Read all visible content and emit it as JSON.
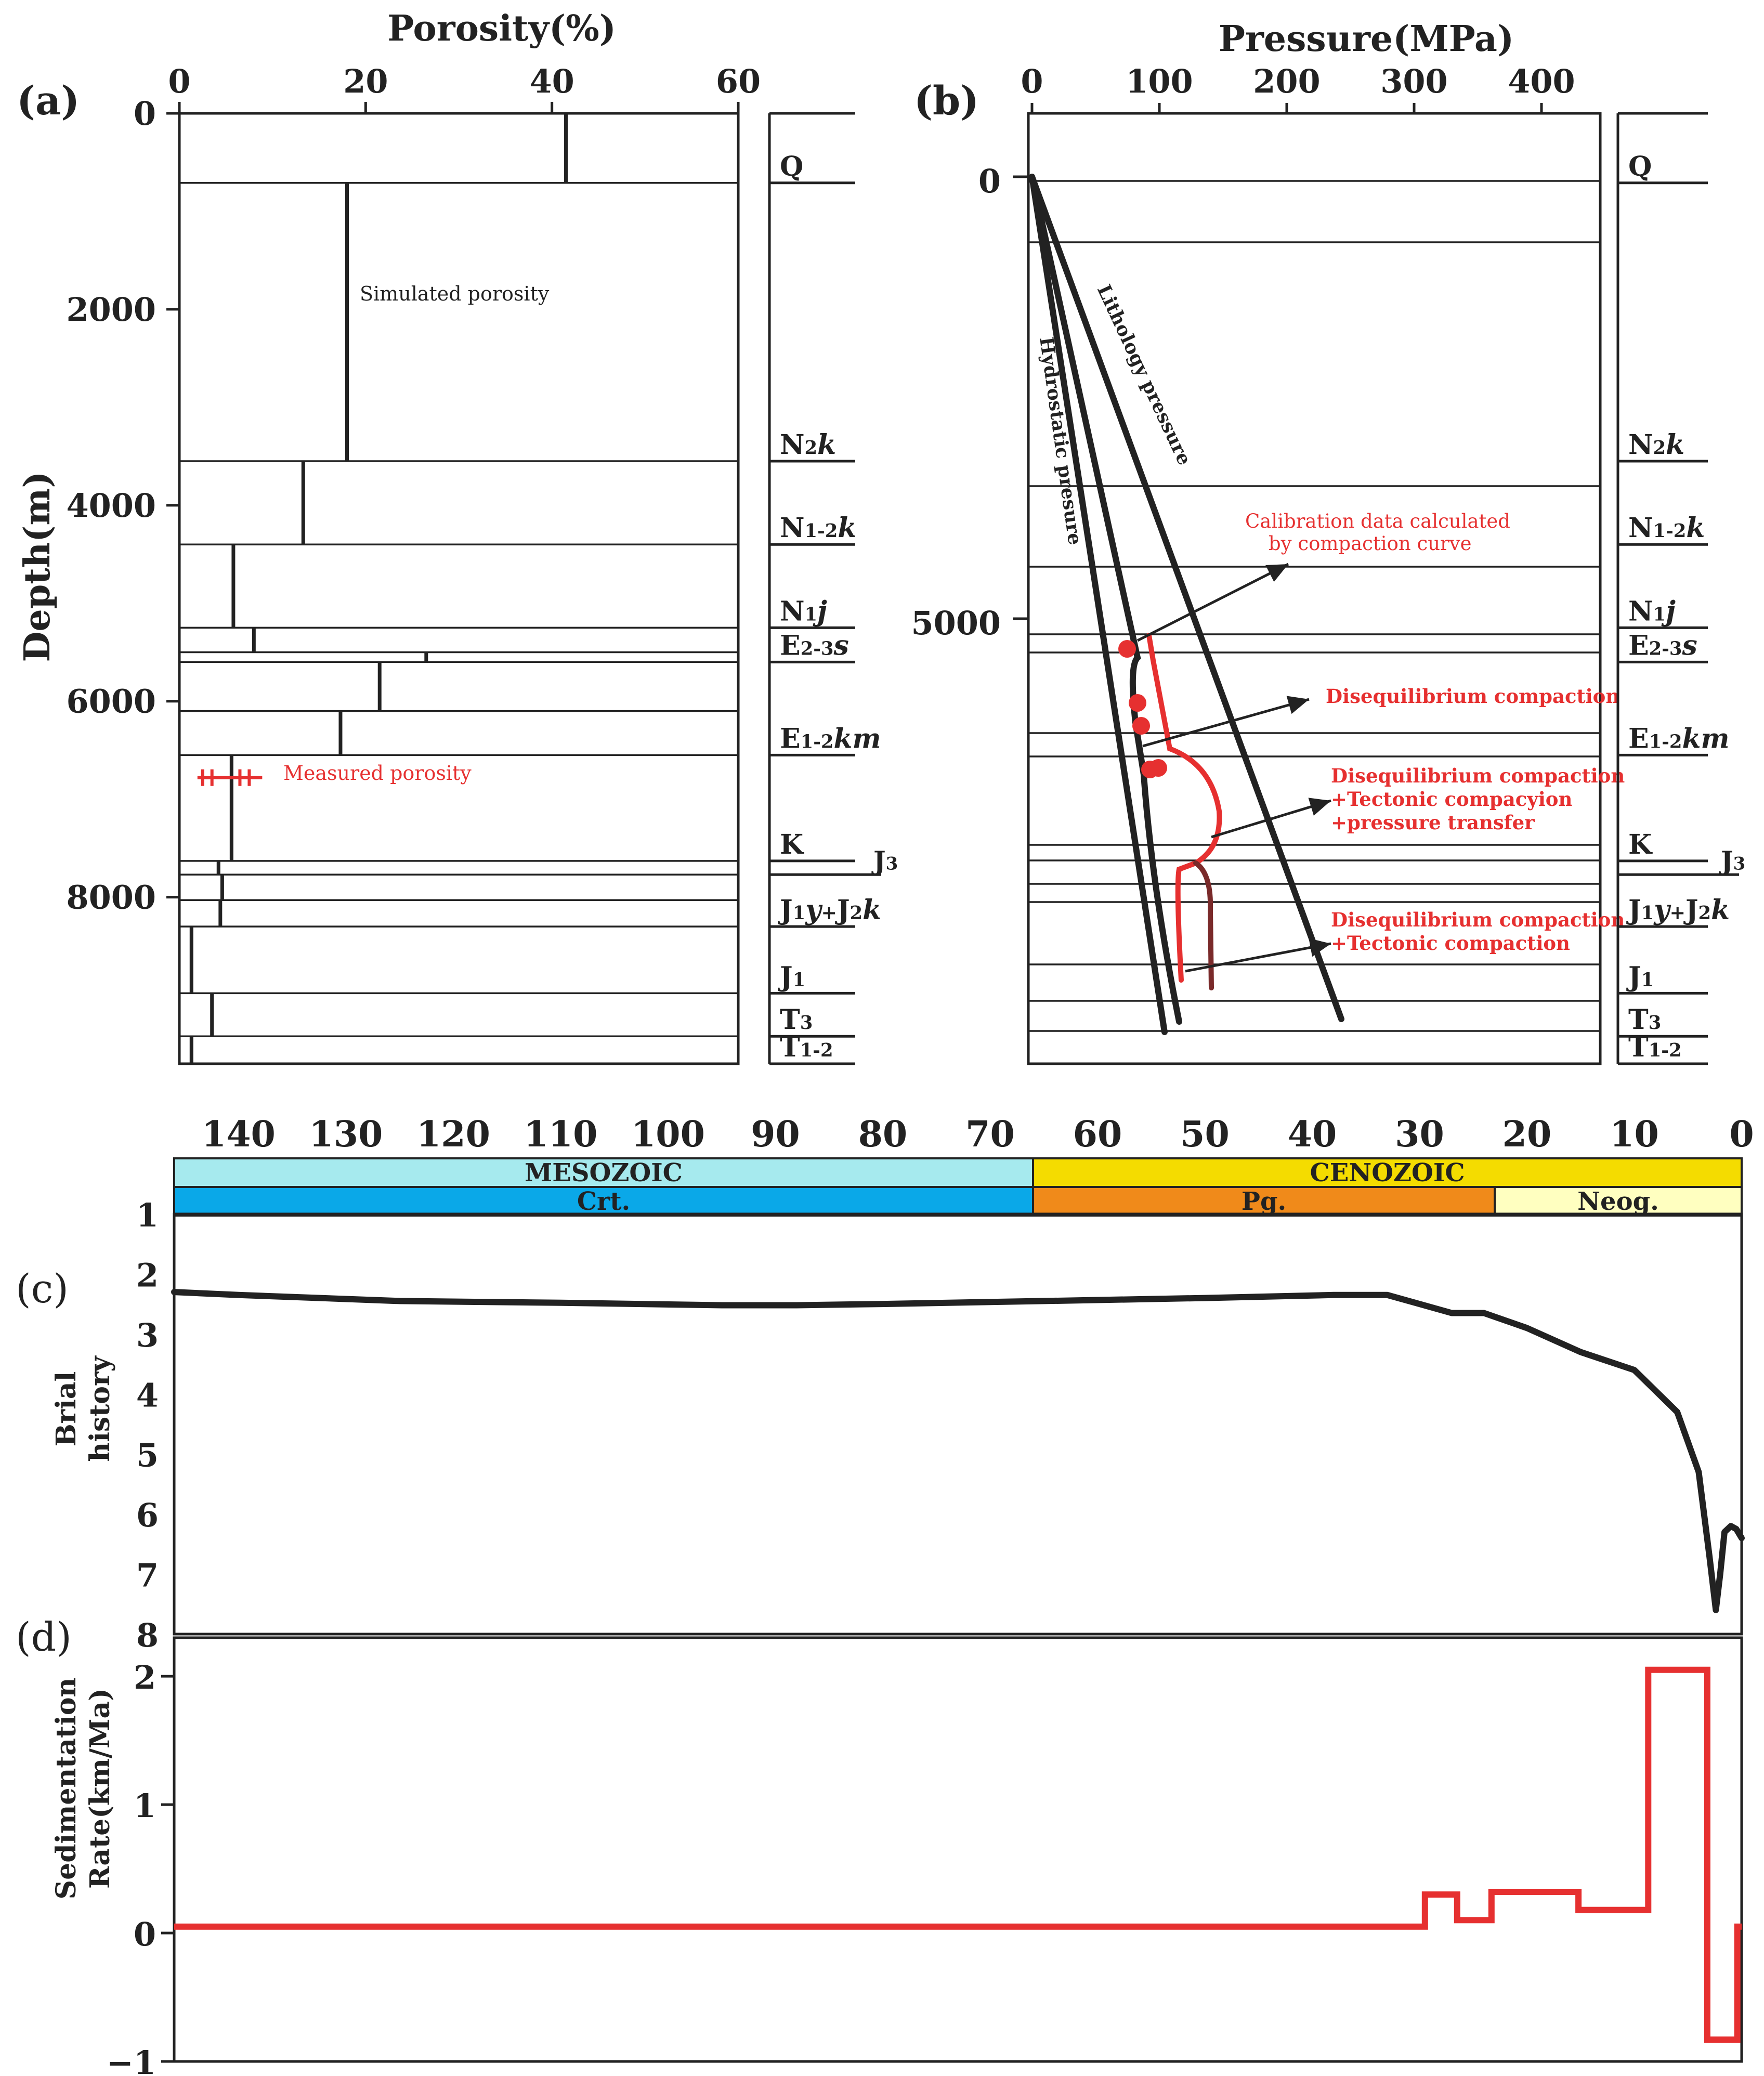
{
  "colors": {
    "red": "#e63030",
    "black": "#222222",
    "dark_red": "#7a2a2a",
    "mesozoic": "#a6eaee",
    "cretaceous": "#0aa8e8",
    "cenozoic": "#f4dc00",
    "paleogene": "#f08a1a",
    "neogene": "#ffffc0"
  },
  "chart_data": [
    {
      "type": "line",
      "panel_label": "(a)",
      "xlabel": "Porosity(%)",
      "ylabel": "Depth(m)",
      "xlim": [
        0,
        60
      ],
      "ylim": [
        9700,
        0
      ],
      "x_ticks": [
        "0",
        "20",
        "40",
        "60"
      ],
      "y_ticks": [
        "0",
        "2000",
        "4000",
        "6000",
        "8000"
      ],
      "simulated_label": "Simulated porosity",
      "measured_label": "Measured porosity",
      "layer_boundaries": [
        0,
        710,
        3550,
        4400,
        5250,
        5500,
        5600,
        6100,
        6550,
        7630,
        7770,
        8030,
        8300,
        8980,
        9420,
        9700
      ],
      "simulated_porosity": [
        41.5,
        18,
        13.3,
        5.8,
        8,
        26.5,
        21.5,
        17.3,
        5.6,
        4.2,
        4.6,
        4.4,
        1.3,
        3.5,
        1.3
      ],
      "measured_points": [
        {
          "x": 2.5,
          "y": 6780
        },
        {
          "x": 3.5,
          "y": 6780
        },
        {
          "x": 6.5,
          "y": 6780
        },
        {
          "x": 7.5,
          "y": 6780
        }
      ],
      "formations": [
        {
          "name": "Q",
          "depth": 710
        },
        {
          "name": "N2k",
          "depth": 3550
        },
        {
          "name": "N1-2k",
          "depth": 4400
        },
        {
          "name": "N1j",
          "depth": 5250
        },
        {
          "name": "E2-3s",
          "depth": 5600
        },
        {
          "name": "E1-2km",
          "depth": 6550
        },
        {
          "name": "K",
          "depth": 7630
        },
        {
          "name": "J3",
          "depth": 7770
        },
        {
          "name": "J1y+J2k",
          "depth": 8300
        },
        {
          "name": "J1",
          "depth": 8980
        },
        {
          "name": "T3",
          "depth": 9420
        },
        {
          "name": "T1-2",
          "depth": 9700
        }
      ]
    },
    {
      "type": "line",
      "panel_label": "(b)",
      "xlabel": "Pressure(MPa)",
      "xlim": [
        0,
        460
      ],
      "ylim": [
        -800,
        10200
      ],
      "x_ticks": [
        "0",
        "100",
        "200",
        "300",
        "400"
      ],
      "y_ticks": [
        "0",
        "5000"
      ],
      "series": [
        {
          "name": "Hydrostatic presure",
          "x": [
            0,
            100
          ],
          "y": [
            0,
            9800
          ]
        },
        {
          "name": "Lithology pressure",
          "x": [
            0,
            250
          ],
          "y": [
            0,
            9750
          ]
        },
        {
          "x": [
            0,
            80,
            80,
            115
          ],
          "y": [
            0,
            5450,
            6300,
            9700
          ]
        }
      ],
      "calibration_points": [
        {
          "x": 68,
          "y": 5450
        },
        {
          "x": 76,
          "y": 6050
        },
        {
          "x": 78,
          "y": 6300
        },
        {
          "x": 84,
          "y": 6900
        },
        {
          "x": 89,
          "y": 6860
        }
      ],
      "annotations": [
        "Calibration data calculated",
        "by compaction curve",
        "Disequilibrium compaction",
        "Disequilibrium compaction",
        "+Tectonic compacyion",
        "+pressure transfer",
        "Disequilibrium compaction",
        "+Tectonic compaction"
      ],
      "formations": [
        "Q",
        "N2k",
        "N1-2k",
        "N1j",
        "E2-3s",
        "E1-2km",
        "K",
        "J3",
        "J1y+J2k",
        "J1",
        "T3",
        "T1-2"
      ]
    },
    {
      "type": "line",
      "panel_label": "(c)",
      "ylabel": "Brial history",
      "xlim": [
        146,
        0
      ],
      "ylim": [
        8,
        1
      ],
      "x_ticks": [
        "140",
        "130",
        "120",
        "110",
        "100",
        "90",
        "80",
        "70",
        "60",
        "50",
        "40",
        "30",
        "20",
        "10",
        "0"
      ],
      "y_ticks": [
        "1",
        "2",
        "3",
        "4",
        "5",
        "6",
        "7",
        "8"
      ],
      "eras": [
        {
          "name": "MESOZOIC",
          "from": 146,
          "to": 66
        },
        {
          "name": "CENOZOIC",
          "from": 66,
          "to": 0
        }
      ],
      "periods": [
        {
          "name": "Crt.",
          "from": 146,
          "to": 66
        },
        {
          "name": "Pg.",
          "from": 66,
          "to": 23
        },
        {
          "name": "Neog.",
          "from": 23,
          "to": 0
        }
      ],
      "x": [
        146,
        140,
        125,
        110,
        95,
        88,
        80,
        65,
        50,
        38,
        33,
        30,
        27,
        24,
        20,
        15,
        10,
        6,
        4,
        3,
        2.4,
        2,
        1.6,
        1,
        0.5,
        0
      ],
      "y": [
        2.3,
        2.35,
        2.45,
        2.48,
        2.52,
        2.52,
        2.5,
        2.45,
        2.4,
        2.35,
        2.35,
        2.5,
        2.65,
        2.65,
        2.9,
        3.3,
        3.6,
        4.3,
        5.3,
        6.7,
        7.6,
        7.0,
        6.3,
        6.2,
        6.25,
        6.4
      ]
    },
    {
      "type": "line",
      "panel_label": "(d)",
      "ylabel": "Sedimentation Rate(km/Ma)",
      "xlim": [
        146,
        0
      ],
      "ylim": [
        -1,
        2.3
      ],
      "y_ticks": [
        "−1",
        "0",
        "1",
        "2"
      ],
      "x": [
        146,
        29.5,
        29.5,
        26.5,
        26.5,
        23.3,
        23.3,
        15.2,
        15.2,
        8.7,
        8.7,
        3.2,
        3.2,
        0.4,
        0.4,
        0
      ],
      "y": [
        0.05,
        0.05,
        0.3,
        0.3,
        0.1,
        0.1,
        0.32,
        0.32,
        0.18,
        0.18,
        2.05,
        2.05,
        -0.83,
        -0.83,
        0.05,
        0.05
      ]
    }
  ]
}
